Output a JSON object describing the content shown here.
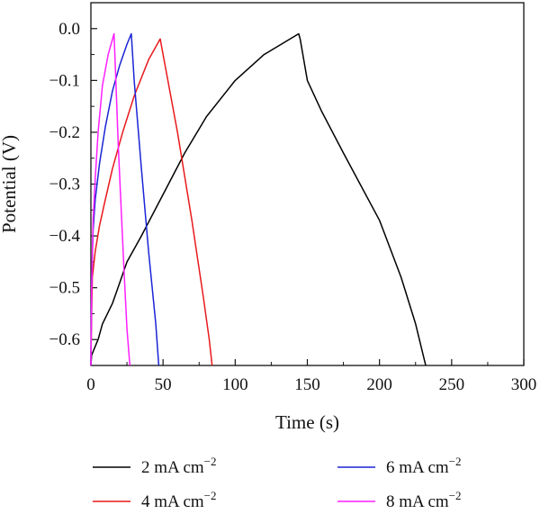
{
  "chart_data": {
    "type": "line",
    "xlabel": "Time (s)",
    "ylabel": "Potential (V)",
    "xlim": [
      0,
      300
    ],
    "ylim": [
      -0.65,
      0.05
    ],
    "xticks": [
      0,
      50,
      100,
      150,
      200,
      250,
      300
    ],
    "yticks": [
      0.0,
      -0.1,
      -0.2,
      -0.3,
      -0.4,
      -0.5,
      -0.6
    ],
    "ytick_labels": [
      "0.0",
      "−0.1",
      "−0.2",
      "−0.3",
      "−0.4",
      "−0.5",
      "−0.6"
    ],
    "grid": false,
    "legend_position": "bottom",
    "series": [
      {
        "name": "2 mA cm−2",
        "label_main": "2 mA cm",
        "label_sup": "−2",
        "color": "#000000",
        "points": [
          [
            0,
            -0.65
          ],
          [
            0.5,
            -0.63
          ],
          [
            2,
            -0.62
          ],
          [
            5,
            -0.6
          ],
          [
            8,
            -0.57
          ],
          [
            15,
            -0.53
          ],
          [
            20,
            -0.49
          ],
          [
            25,
            -0.45
          ],
          [
            35,
            -0.4
          ],
          [
            50,
            -0.32
          ],
          [
            65,
            -0.24
          ],
          [
            80,
            -0.17
          ],
          [
            100,
            -0.1
          ],
          [
            120,
            -0.05
          ],
          [
            144,
            -0.01
          ],
          [
            145,
            -0.02
          ],
          [
            150,
            -0.1
          ],
          [
            160,
            -0.16
          ],
          [
            175,
            -0.24
          ],
          [
            200,
            -0.37
          ],
          [
            215,
            -0.48
          ],
          [
            225,
            -0.57
          ],
          [
            232,
            -0.65
          ]
        ]
      },
      {
        "name": "4 mA cm−2",
        "label_main": "4 mA cm",
        "label_sup": "−2",
        "color": "#e8191c",
        "points": [
          [
            0,
            -0.65
          ],
          [
            0.5,
            -0.55
          ],
          [
            1,
            -0.48
          ],
          [
            3,
            -0.43
          ],
          [
            6,
            -0.38
          ],
          [
            10,
            -0.33
          ],
          [
            15,
            -0.27
          ],
          [
            22,
            -0.2
          ],
          [
            30,
            -0.13
          ],
          [
            40,
            -0.06
          ],
          [
            48,
            -0.02
          ],
          [
            50,
            -0.05
          ],
          [
            60,
            -0.2
          ],
          [
            70,
            -0.37
          ],
          [
            78,
            -0.52
          ],
          [
            82,
            -0.6
          ],
          [
            84,
            -0.65
          ]
        ]
      },
      {
        "name": "6 mA cm−2",
        "label_main": "6 mA cm",
        "label_sup": "−2",
        "color": "#1a24d6",
        "points": [
          [
            0,
            -0.65
          ],
          [
            0.5,
            -0.5
          ],
          [
            1.5,
            -0.39
          ],
          [
            3,
            -0.33
          ],
          [
            6,
            -0.26
          ],
          [
            10,
            -0.19
          ],
          [
            15,
            -0.12
          ],
          [
            20,
            -0.07
          ],
          [
            25,
            -0.03
          ],
          [
            28,
            -0.01
          ],
          [
            30,
            -0.1
          ],
          [
            35,
            -0.27
          ],
          [
            40,
            -0.43
          ],
          [
            45,
            -0.57
          ],
          [
            47,
            -0.65
          ]
        ]
      },
      {
        "name": "8 mA cm−2",
        "label_main": "8 mA cm",
        "label_sup": "−2",
        "color": "#ff1fff",
        "points": [
          [
            0,
            -0.65
          ],
          [
            0.5,
            -0.5
          ],
          [
            1.5,
            -0.37
          ],
          [
            3,
            -0.29
          ],
          [
            5,
            -0.2
          ],
          [
            8,
            -0.11
          ],
          [
            12,
            -0.05
          ],
          [
            16,
            -0.01
          ],
          [
            17,
            -0.08
          ],
          [
            19,
            -0.23
          ],
          [
            21,
            -0.35
          ],
          [
            23,
            -0.47
          ],
          [
            25,
            -0.58
          ],
          [
            27,
            -0.65
          ]
        ]
      }
    ]
  }
}
